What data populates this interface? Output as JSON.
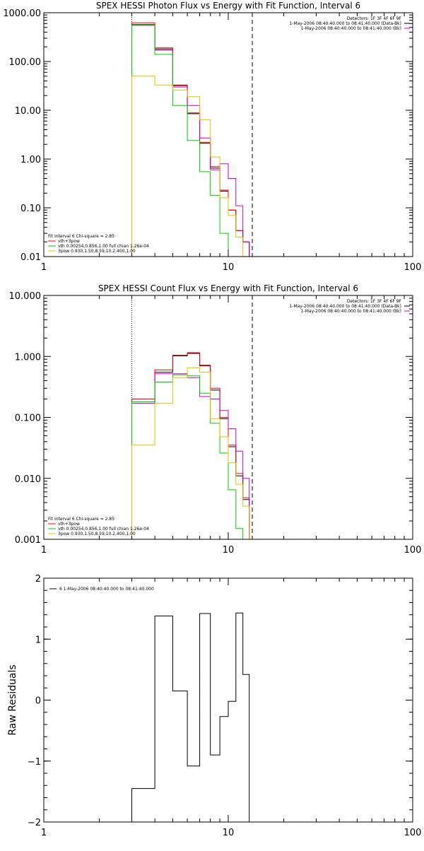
{
  "chart_data": [
    {
      "type": "line",
      "title": "SPEX HESSI Photon Flux vs Energy with Fit Function, Interval 6",
      "xlabel": "",
      "ylabel": "",
      "xscale": "log",
      "yscale": "log",
      "xlim": [
        1,
        100
      ],
      "ylim": [
        0.01,
        1000
      ],
      "x_ticks": [
        "1",
        "10",
        "100"
      ],
      "y_ticks": [
        "0.01",
        "0.10",
        "1.00",
        "10.00",
        "100.00",
        "1000.00"
      ],
      "x_tick_values": [
        1,
        10,
        100
      ],
      "y_tick_values": [
        0.01,
        0.1,
        1,
        10,
        100,
        1000
      ],
      "vlines": [
        {
          "x": 3.0,
          "style": "dotted"
        },
        {
          "x": 13.5,
          "style": "dashed"
        }
      ],
      "legend_top_right": [
        {
          "text": "Detectors: 1F 3F 4F 6F 9F",
          "color": "#000000"
        },
        {
          "text": "1-May-2006 08:40:40.000 to 08:41:40.000 (Data-Bk)",
          "color": "#000000"
        },
        {
          "text": "1-May-2006 08:40:40.000 to 08:41:40.000 (Bk)",
          "color": "#cc00cc"
        }
      ],
      "legend_bottom_left": [
        {
          "text": "Fit Interval 6   Chi-square = 2.85",
          "color": "#000000"
        },
        {
          "text": "vth+3pow",
          "color": "#ff0000"
        },
        {
          "text": "vth 0.00254,0.856,1.00   full chian 1.26e-04",
          "color": "#00cc00"
        },
        {
          "text": "3pow 0.930,1.50,8.59,10.2,400,1.00",
          "color": "#e6c000"
        }
      ],
      "edges": [
        3.0,
        4.0,
        5.0,
        6.0,
        7.0,
        8.0,
        9.0,
        10.0,
        11.0,
        12.0,
        13.0,
        14.0
      ],
      "series": [
        {
          "color": "#000000",
          "values": [
            570,
            180,
            32,
            8.5,
            2.1,
            0.65,
            0.22,
            0.09,
            0.034,
            0.02,
            0.01
          ]
        },
        {
          "color": "#ff0000",
          "values": [
            620,
            190,
            33,
            8.8,
            2.2,
            0.7,
            0.23,
            0.09,
            0.034,
            0.02,
            0.01
          ]
        },
        {
          "color": "#cc00cc",
          "values": [
            550,
            170,
            30,
            12.5,
            2.7,
            0.6,
            0.8,
            0.4,
            0.11,
            0.02,
            0.01
          ]
        },
        {
          "color": "#00cc00",
          "values": [
            560,
            140,
            12.5,
            2.4,
            0.55,
            0.18,
            0.03,
            0.01,
            0.01,
            0.01,
            0.01
          ]
        },
        {
          "color": "#e6c000",
          "values": [
            50,
            33,
            26,
            19,
            6.4,
            1.1,
            0.16,
            0.07,
            0.025,
            0.01,
            0.01
          ]
        }
      ]
    },
    {
      "type": "line",
      "title": "SPEX HESSI Count Flux vs Energy with Fit Function, Interval 6",
      "xlabel": "",
      "ylabel": "",
      "xscale": "log",
      "yscale": "log",
      "xlim": [
        1,
        100
      ],
      "ylim": [
        0.001,
        10
      ],
      "x_ticks": [
        "1",
        "10",
        "100"
      ],
      "y_ticks": [
        "0.001",
        "0.010",
        "0.100",
        "1.000",
        "10.000"
      ],
      "x_tick_values": [
        1,
        10,
        100
      ],
      "y_tick_values": [
        0.001,
        0.01,
        0.1,
        1,
        10
      ],
      "vlines": [
        {
          "x": 3.0,
          "style": "dotted"
        },
        {
          "x": 13.5,
          "style": "dashed"
        }
      ],
      "legend_top_right": [
        {
          "text": "Detectors: 1F 3F 4F 6F 9F",
          "color": "#000000"
        },
        {
          "text": "1-May-2006 08:40:40.000 to 08:41:40.000 (Data-Bk)",
          "color": "#000000"
        },
        {
          "text": "1-May-2006 08:40:40.000 to 08:41:40.000 (Bk)",
          "color": "#cc00cc"
        }
      ],
      "legend_bottom_left": [
        {
          "text": "Fit Interval 6   Chi-square = 2.85",
          "color": "#000000"
        },
        {
          "text": "vth+3pow",
          "color": "#ff0000"
        },
        {
          "text": "vth 0.00254,0.856,1.00   full chian 1.26e-04",
          "color": "#00cc00"
        },
        {
          "text": "3pow 0.930,1.50,8.59,10.2,400,1.00",
          "color": "#e6c000"
        }
      ],
      "edges": [
        3.0,
        4.0,
        5.0,
        6.0,
        7.0,
        8.0,
        9.0,
        10.0,
        11.0,
        12.0,
        13.0,
        14.0,
        15.0
      ],
      "series": [
        {
          "color": "#000000",
          "values": [
            0.18,
            0.55,
            1.02,
            1.12,
            0.7,
            0.28,
            0.095,
            0.033,
            0.011,
            0.0045,
            0.001,
            0.001
          ]
        },
        {
          "color": "#ff0000",
          "values": [
            0.2,
            0.6,
            1.05,
            1.15,
            0.72,
            0.3,
            0.1,
            0.035,
            0.012,
            0.0048,
            0.001,
            0.001
          ]
        },
        {
          "color": "#cc00cc",
          "values": [
            0.17,
            0.52,
            0.52,
            0.45,
            0.22,
            0.2,
            0.13,
            0.065,
            0.028,
            0.01,
            0.001,
            0.001
          ]
        },
        {
          "color": "#00cc00",
          "values": [
            0.18,
            0.38,
            0.5,
            0.48,
            0.25,
            0.08,
            0.026,
            0.0065,
            0.0015,
            0.001,
            0.001,
            0.001
          ]
        },
        {
          "color": "#e6c000",
          "values": [
            0.035,
            0.17,
            0.45,
            0.65,
            0.55,
            0.095,
            0.048,
            0.018,
            0.008,
            0.0035,
            0.001,
            0.001
          ]
        }
      ]
    },
    {
      "type": "line",
      "title": "",
      "xlabel": "",
      "ylabel": "Raw Residuals",
      "xscale": "log",
      "yscale": "linear",
      "xlim": [
        1,
        100
      ],
      "ylim": [
        -2,
        2
      ],
      "x_ticks": [
        "1",
        "10",
        "100"
      ],
      "y_ticks": [
        "−2",
        "−1",
        "0",
        "1",
        "2"
      ],
      "x_tick_values": [
        1,
        10,
        100
      ],
      "y_tick_values": [
        -2,
        -1,
        0,
        1,
        2
      ],
      "legend_top_left": [
        {
          "text": "6  1-May-2006 08:40:40.000 to 08:41:40.000",
          "color": "#000000"
        }
      ],
      "edges": [
        3.0,
        4.0,
        5.0,
        6.0,
        7.0,
        8.0,
        9.0,
        10.0,
        11.0,
        12.0,
        13.0
      ],
      "series": [
        {
          "color": "#000000",
          "values": [
            -1.45,
            1.38,
            0.15,
            -1.08,
            1.42,
            -0.9,
            -0.27,
            -0.02,
            1.43,
            0.42
          ]
        }
      ]
    }
  ]
}
